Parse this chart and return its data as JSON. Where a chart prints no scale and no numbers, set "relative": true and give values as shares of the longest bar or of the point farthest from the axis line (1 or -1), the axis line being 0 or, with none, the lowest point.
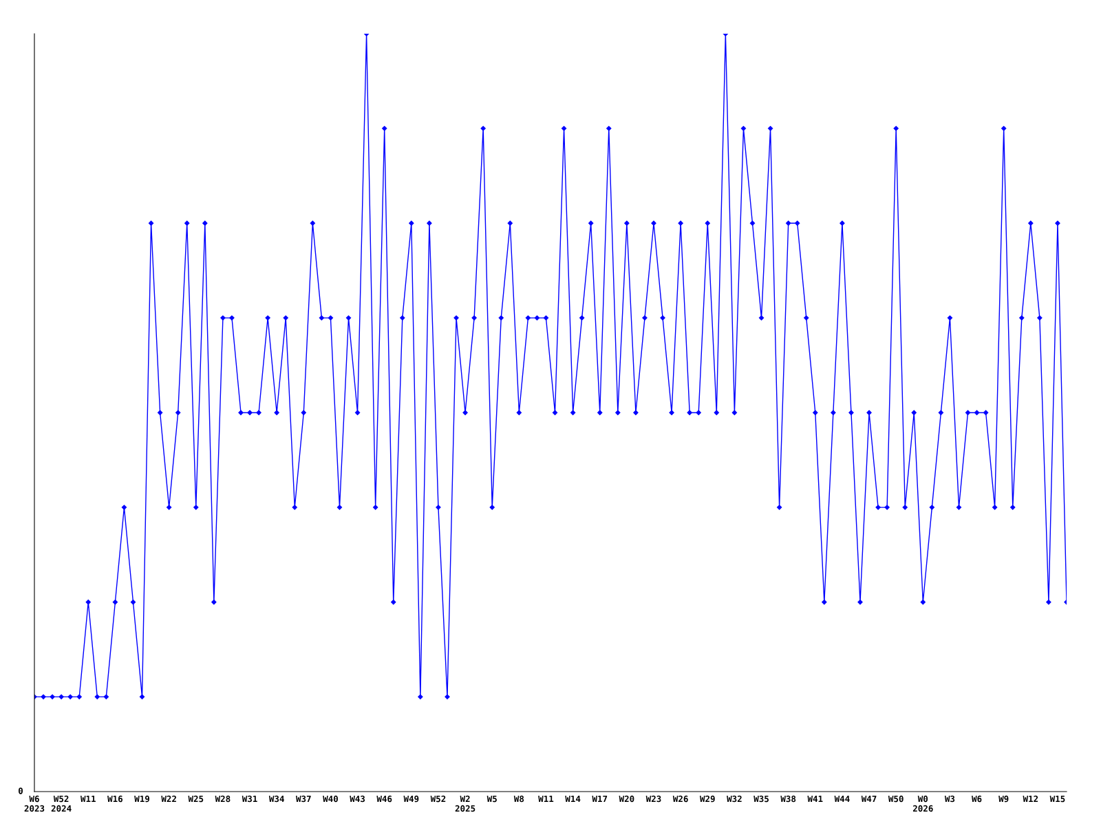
{
  "chart_data": {
    "type": "line",
    "relative": true,
    "categories": [
      "W6\n2023",
      null,
      null,
      "W52\n2024",
      null,
      null,
      "W11",
      null,
      null,
      "W16",
      null,
      null,
      "W19",
      null,
      null,
      "W22",
      null,
      null,
      "W25",
      null,
      null,
      "W28",
      null,
      null,
      "W31",
      null,
      null,
      "W34",
      null,
      null,
      "W37",
      null,
      null,
      "W40",
      null,
      null,
      "W43",
      null,
      null,
      "W46",
      null,
      null,
      "W49",
      null,
      null,
      "W52",
      null,
      null,
      "W2\n2025",
      null,
      null,
      "W5",
      null,
      null,
      "W8",
      null,
      null,
      "W11",
      null,
      null,
      "W14",
      null,
      null,
      "W17",
      null,
      null,
      "W20",
      null,
      null,
      "W23",
      null,
      null,
      "W26",
      null,
      null,
      "W29",
      null,
      null,
      "W32",
      null,
      null,
      "W35",
      null,
      null,
      "W38",
      null,
      null,
      "W41",
      null,
      null,
      "W44",
      null,
      null,
      "W47",
      null,
      null,
      "W50",
      null,
      null,
      "W0\n2026",
      null,
      null,
      "W3",
      null,
      null,
      "W6",
      null,
      null,
      "W9",
      null,
      null,
      "W12",
      null,
      null,
      "W15",
      null
    ],
    "series": [
      {
        "color": "#0000ff",
        "values": [
          0.125,
          0.125,
          0.125,
          0.125,
          0.125,
          0.125,
          0.25,
          0.125,
          0.125,
          0.25,
          0.375,
          0.25,
          0.125,
          0.75,
          0.5,
          0.375,
          0.5,
          0.75,
          0.375,
          0.75,
          0.25,
          0.625,
          0.625,
          0.5,
          0.5,
          0.5,
          0.625,
          0.5,
          0.625,
          0.375,
          0.5,
          0.75,
          0.625,
          0.625,
          0.375,
          0.625,
          0.5,
          1,
          0.375,
          0.875,
          0.25,
          0.625,
          0.75,
          0.125,
          0.75,
          0.375,
          0.125,
          0.625,
          0.5,
          0.625,
          0.875,
          0.375,
          0.625,
          0.75,
          0.5,
          0.625,
          0.625,
          0.625,
          0.5,
          0.875,
          0.5,
          0.625,
          0.75,
          0.5,
          0.875,
          0.5,
          0.75,
          0.5,
          0.625,
          0.75,
          0.625,
          0.5,
          0.75,
          0.5,
          0.5,
          0.75,
          0.5,
          1,
          0.5,
          0.875,
          0.75,
          0.625,
          0.875,
          0.375,
          0.75,
          0.75,
          0.625,
          0.5,
          0.25,
          0.5,
          0.75,
          0.5,
          0.25,
          0.5,
          0.375,
          0.375,
          0.875,
          0.375,
          0.5,
          0.25,
          0.375,
          0.5,
          0.625,
          0.375,
          0.5,
          0.5,
          0.5,
          0.375,
          0.875,
          0.375,
          0.625,
          0.75,
          0.625,
          0.25,
          0.75,
          0.25
        ]
      }
    ],
    "annotations": [
      "0"
    ],
    "marker": "diamond",
    "line_style": "solid",
    "grid": false
  }
}
